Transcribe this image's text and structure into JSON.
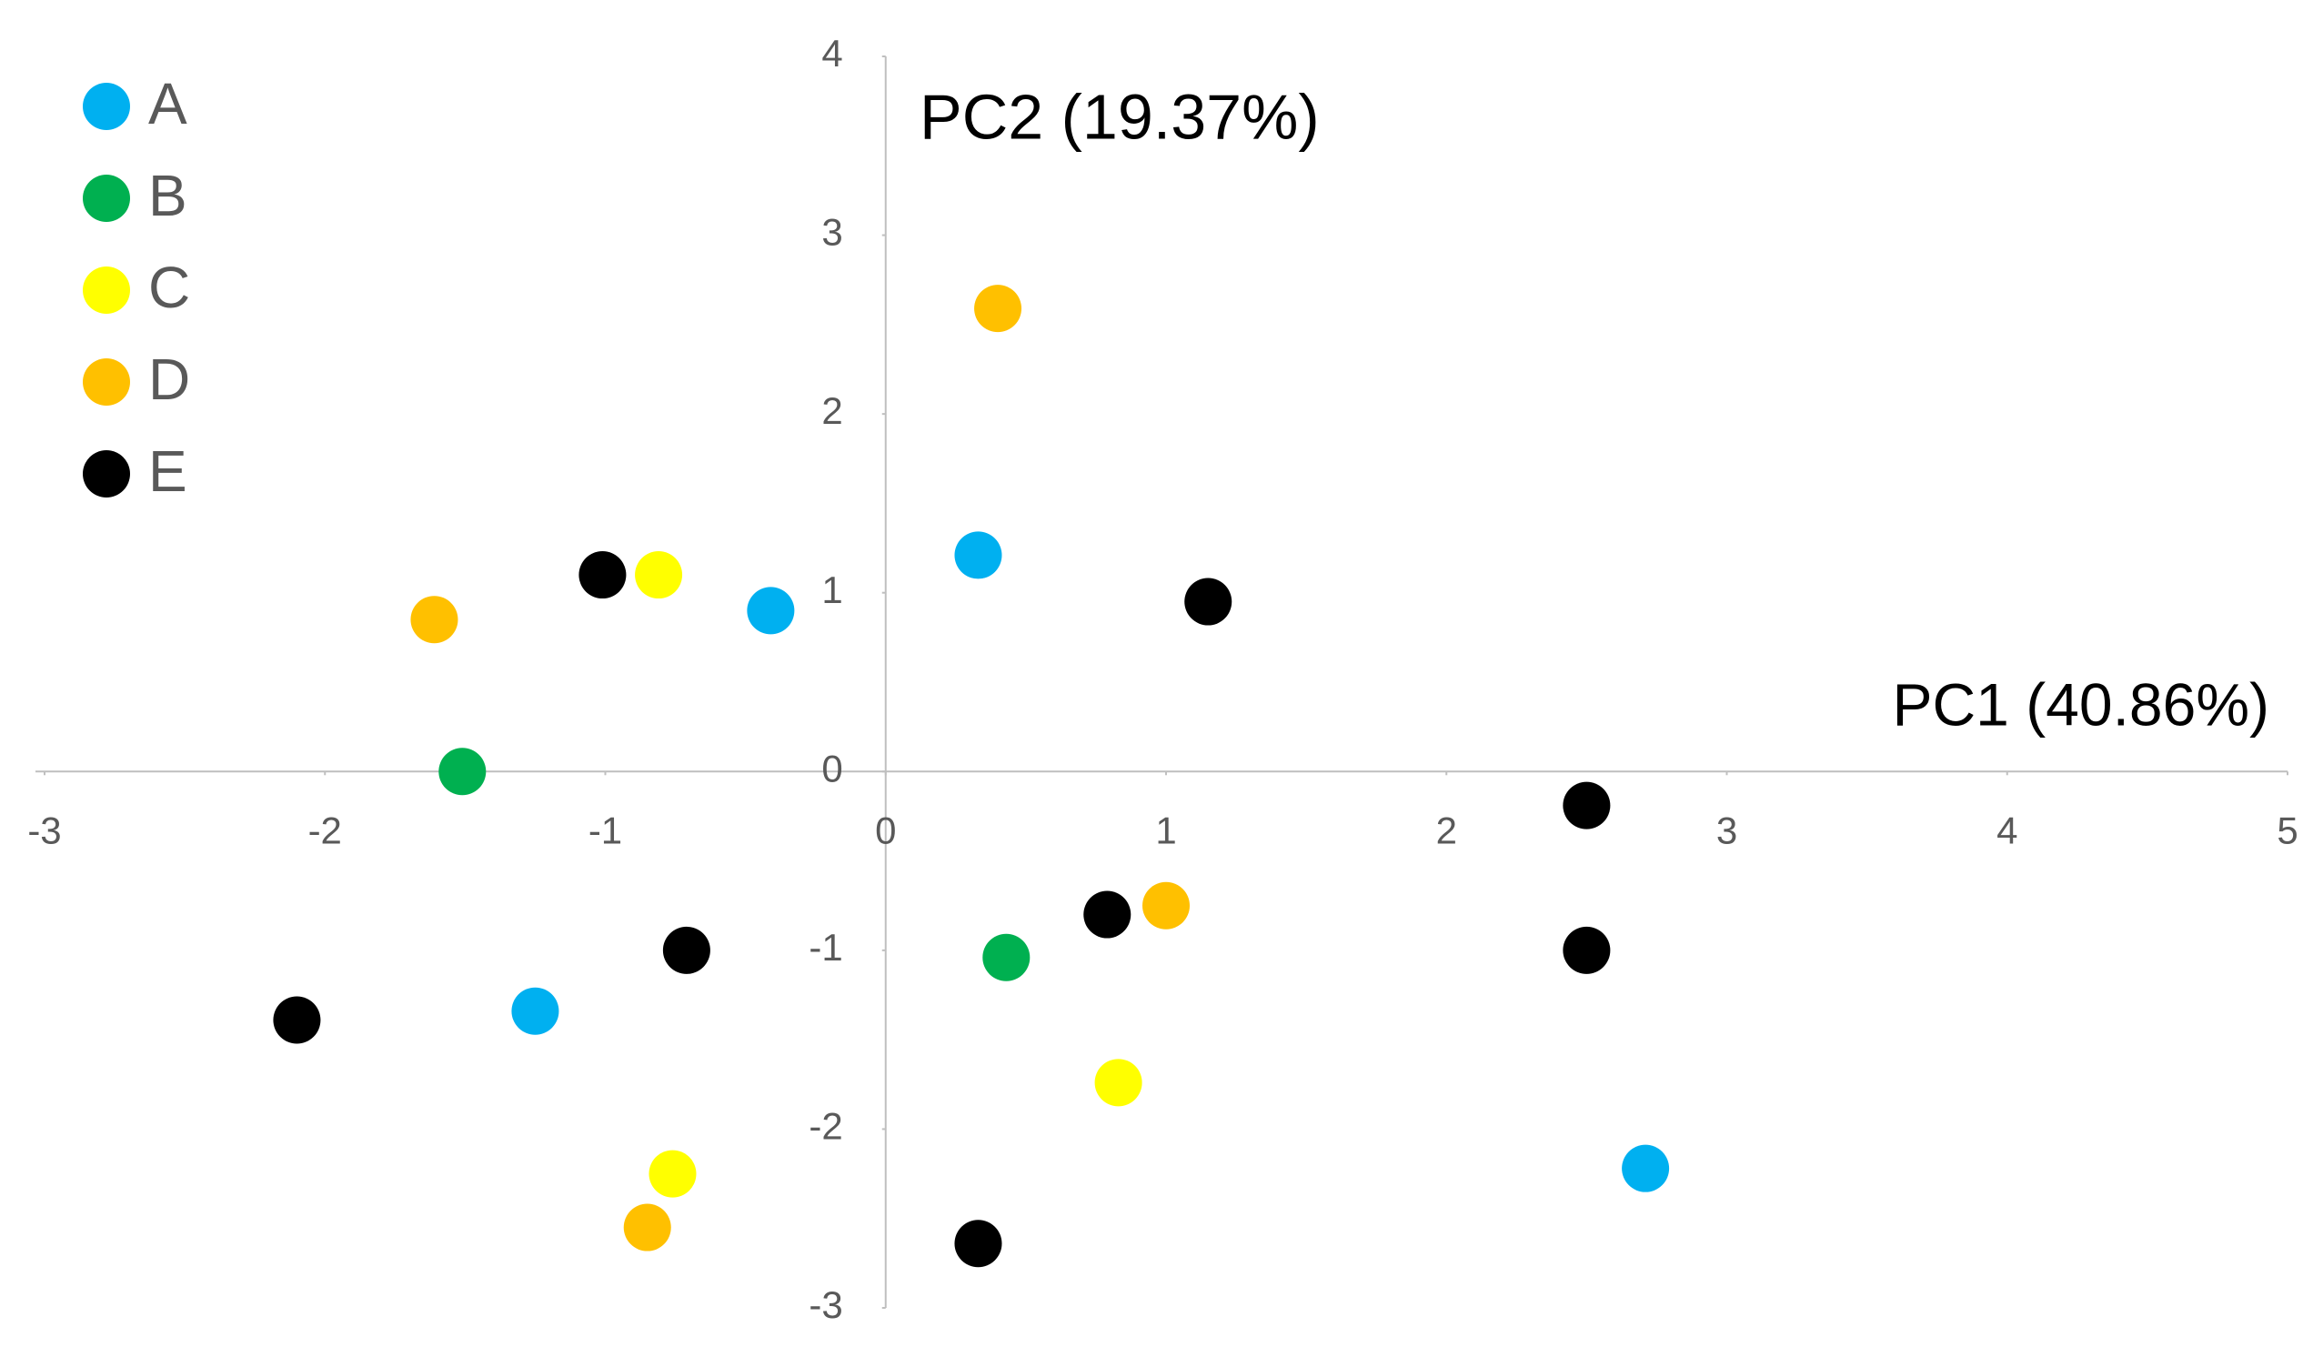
{
  "chart_data": {
    "type": "scatter",
    "x_label": "PC1 (40.86%)",
    "y_label": "PC2 (19.37%)",
    "xlim": [
      -3,
      5
    ],
    "xticks": [
      -3,
      -2,
      -1,
      0,
      1,
      2,
      3,
      4,
      5
    ],
    "ylim": [
      -3,
      4
    ],
    "yticks": [
      -3,
      -2,
      -1,
      0,
      1,
      2,
      3,
      4
    ],
    "legend": "top-left",
    "series": [
      {
        "name": "A",
        "color": "#00b0f0",
        "x": [
          0.33,
          -0.41,
          -1.25,
          2.71
        ],
        "y": [
          1.21,
          0.9,
          -1.34,
          -2.22
        ]
      },
      {
        "name": "B",
        "color": "#00b050",
        "x": [
          -1.51,
          0.43
        ],
        "y": [
          0,
          -1.04
        ]
      },
      {
        "name": "C",
        "color": "#ffff00",
        "x": [
          -0.81,
          0.83,
          -0.76
        ],
        "y": [
          1.1,
          -1.74,
          -2.25
        ]
      },
      {
        "name": "D",
        "color": "#ffc000",
        "x": [
          0.4,
          -1.61,
          1.0,
          -0.85
        ],
        "y": [
          2.59,
          0.85,
          -0.75,
          -2.55
        ]
      },
      {
        "name": "E",
        "color": "#000000",
        "x": [
          -1.01,
          1.15,
          2.5,
          2.5,
          0.79,
          -0.71,
          -2.1,
          0.33
        ],
        "y": [
          1.1,
          0.95,
          -0.19,
          -1.0,
          -0.8,
          -1.0,
          -1.39,
          -2.64
        ]
      }
    ]
  }
}
